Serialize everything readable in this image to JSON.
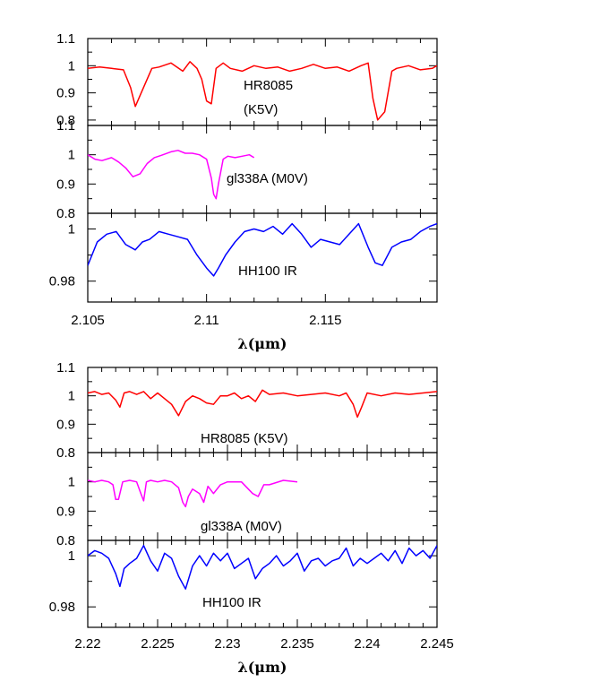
{
  "chart_data": [
    {
      "type": "line",
      "xlim": [
        2.105,
        2.1197
      ],
      "x_ticks": [
        "2.105",
        "2.11",
        "2.115"
      ],
      "x_tick_values": [
        2.105,
        2.11,
        2.115
      ],
      "xlabel": "λ(μm)",
      "panels": [
        {
          "ylim": [
            0.78,
            1.1
          ],
          "y_ticks": [
            "0.8",
            "0.9",
            "1",
            "1.1"
          ],
          "y_tick_values": [
            0.8,
            0.9,
            1.0,
            1.1
          ],
          "annotations": [
            "HR8085",
            "(K5V)"
          ],
          "series": [
            {
              "color": "#ff0000",
              "x": [
                2.105,
                2.1055,
                2.106,
                2.1065,
                2.1068,
                2.107,
                2.1073,
                2.1077,
                2.108,
                2.1085,
                2.109,
                2.1093,
                2.1096,
                2.1098,
                2.11,
                2.1102,
                2.1104,
                2.1107,
                2.111,
                2.1115,
                2.112,
                2.1125,
                2.113,
                2.1135,
                2.114,
                2.1145,
                2.115,
                2.1155,
                2.116,
                2.1165,
                2.1168,
                2.117,
                2.1172,
                2.1175,
                2.1178,
                2.118,
                2.1185,
                2.119,
                2.1195,
                2.1197
              ],
              "y": [
                0.99,
                0.995,
                0.99,
                0.985,
                0.92,
                0.85,
                0.91,
                0.99,
                0.995,
                1.01,
                0.98,
                1.015,
                0.99,
                0.95,
                0.87,
                0.86,
                0.99,
                1.01,
                0.99,
                0.98,
                1.0,
                0.99,
                0.995,
                0.98,
                0.99,
                1.005,
                0.99,
                0.995,
                0.98,
                1.0,
                1.01,
                0.88,
                0.8,
                0.83,
                0.98,
                0.99,
                1.0,
                0.985,
                0.99,
                1.0
              ]
            }
          ]
        },
        {
          "ylim": [
            0.8,
            1.1
          ],
          "y_ticks": [
            "0.8",
            "0.9",
            "1",
            "1.1"
          ],
          "y_tick_values": [
            0.8,
            0.9,
            1.0,
            1.1
          ],
          "annotations": [
            "gl338A (M0V)"
          ],
          "series": [
            {
              "color": "#ff00ff",
              "x": [
                2.105,
                2.1053,
                2.1056,
                2.106,
                2.1063,
                2.1066,
                2.1069,
                2.1072,
                2.1075,
                2.1078,
                2.1081,
                2.1085,
                2.1088,
                2.1091,
                2.1094,
                2.1097,
                2.11,
                2.1102,
                2.1103,
                2.1104,
                2.1105,
                2.1107,
                2.1109,
                2.1112,
                2.1115,
                2.1118,
                2.112
              ],
              "y": [
                1.0,
                0.985,
                0.98,
                0.99,
                0.975,
                0.955,
                0.925,
                0.935,
                0.97,
                0.99,
                0.998,
                1.01,
                1.015,
                1.005,
                1.005,
                1.0,
                0.985,
                0.92,
                0.865,
                0.85,
                0.9,
                0.985,
                0.995,
                0.99,
                0.995,
                1.0,
                0.99
              ]
            }
          ]
        },
        {
          "ylim": [
            0.972,
            1.006
          ],
          "y_ticks": [
            "0.98",
            "1"
          ],
          "y_tick_values": [
            0.98,
            1.0
          ],
          "annotations": [
            "HH100 IR"
          ],
          "series": [
            {
              "color": "#0000ff",
              "x": [
                2.105,
                2.1054,
                2.1058,
                2.1062,
                2.1066,
                2.107,
                2.1073,
                2.1076,
                2.108,
                2.1084,
                2.1088,
                2.1092,
                2.1096,
                2.11,
                2.1103,
                2.1105,
                2.1108,
                2.1112,
                2.1116,
                2.112,
                2.1124,
                2.1128,
                2.1132,
                2.1136,
                2.114,
                2.1144,
                2.1148,
                2.1152,
                2.1156,
                2.116,
                2.1164,
                2.1168,
                2.1171,
                2.1174,
                2.1178,
                2.1182,
                2.1186,
                2.119,
                2.1194,
                2.1197
              ],
              "y": [
                0.986,
                0.995,
                0.998,
                0.999,
                0.994,
                0.992,
                0.995,
                0.996,
                0.999,
                0.998,
                0.997,
                0.996,
                0.99,
                0.985,
                0.982,
                0.985,
                0.99,
                0.995,
                0.999,
                1.0,
                0.999,
                1.001,
                0.998,
                1.002,
                0.998,
                0.993,
                0.996,
                0.995,
                0.994,
                0.998,
                1.002,
                0.993,
                0.987,
                0.986,
                0.993,
                0.995,
                0.996,
                0.999,
                1.001,
                1.002
              ]
            }
          ]
        }
      ]
    },
    {
      "type": "line",
      "xlim": [
        2.22,
        2.245
      ],
      "x_ticks": [
        "2.22",
        "2.225",
        "2.23",
        "2.235",
        "2.24",
        "2.245"
      ],
      "x_tick_values": [
        2.22,
        2.225,
        2.23,
        2.235,
        2.24,
        2.245
      ],
      "xlabel": "λ(μm)",
      "panels": [
        {
          "ylim": [
            0.8,
            1.1
          ],
          "y_ticks": [
            "0.8",
            "0.9",
            "1",
            "1.1"
          ],
          "y_tick_values": [
            0.8,
            0.9,
            1.0,
            1.1
          ],
          "annotations": [
            "HR8085 (K5V)"
          ],
          "series": [
            {
              "color": "#ff0000",
              "x": [
                2.22,
                2.2205,
                2.221,
                2.2215,
                2.222,
                2.2223,
                2.2226,
                2.223,
                2.2235,
                2.224,
                2.2245,
                2.225,
                2.2255,
                2.226,
                2.2265,
                2.227,
                2.2275,
                2.228,
                2.2285,
                2.229,
                2.2295,
                2.23,
                2.2305,
                2.231,
                2.2315,
                2.232,
                2.2325,
                2.233,
                2.234,
                2.235,
                2.236,
                2.237,
                2.238,
                2.2385,
                2.239,
                2.2393,
                2.2396,
                2.24,
                2.241,
                2.242,
                2.243,
                2.244,
                2.245
              ],
              "y": [
                1.01,
                1.015,
                1.005,
                1.01,
                0.985,
                0.96,
                1.01,
                1.015,
                1.005,
                1.015,
                0.99,
                1.01,
                0.99,
                0.97,
                0.93,
                0.98,
                1.0,
                0.99,
                0.975,
                0.97,
                1.0,
                1.0,
                1.01,
                0.99,
                1.0,
                0.98,
                1.02,
                1.005,
                1.01,
                1.0,
                1.005,
                1.01,
                1.0,
                1.01,
                0.97,
                0.925,
                0.96,
                1.01,
                1.0,
                1.01,
                1.005,
                1.01,
                1.015
              ]
            }
          ]
        },
        {
          "ylim": [
            0.8,
            1.1
          ],
          "y_ticks": [
            "0.8",
            "0.9",
            "1"
          ],
          "y_tick_values": [
            0.8,
            0.9,
            1.0
          ],
          "annotations": [
            "gl338A (M0V)"
          ],
          "series": [
            {
              "color": "#ff00ff",
              "x": [
                2.22,
                2.2205,
                2.221,
                2.2215,
                2.2218,
                2.222,
                2.2222,
                2.2225,
                2.223,
                2.2235,
                2.2238,
                2.224,
                2.2242,
                2.2245,
                2.225,
                2.2255,
                2.226,
                2.2265,
                2.2268,
                2.227,
                2.2272,
                2.2275,
                2.228,
                2.2283,
                2.2286,
                2.229,
                2.2295,
                2.23,
                2.231,
                2.2318,
                2.2322,
                2.2326,
                2.233,
                2.234,
                2.235
              ],
              "y": [
                1.005,
                1.0,
                1.005,
                1.0,
                0.99,
                0.94,
                0.94,
                1.0,
                1.005,
                1.0,
                0.96,
                0.935,
                1.0,
                1.005,
                1.0,
                1.005,
                1.0,
                0.98,
                0.93,
                0.915,
                0.95,
                0.975,
                0.96,
                0.93,
                0.985,
                0.96,
                0.99,
                1.0,
                1.0,
                0.96,
                0.95,
                0.99,
                0.99,
                1.005,
                1.0
              ]
            }
          ]
        },
        {
          "ylim": [
            0.972,
            1.006
          ],
          "y_ticks": [
            "0.98",
            "1"
          ],
          "y_tick_values": [
            0.98,
            1.0
          ],
          "annotations": [
            "HH100 IR"
          ],
          "series": [
            {
              "color": "#0000ff",
              "x": [
                2.22,
                2.2205,
                2.221,
                2.2215,
                2.222,
                2.2223,
                2.2226,
                2.223,
                2.2235,
                2.224,
                2.2245,
                2.225,
                2.2255,
                2.226,
                2.2265,
                2.227,
                2.2275,
                2.228,
                2.2285,
                2.229,
                2.2295,
                2.23,
                2.2305,
                2.231,
                2.2315,
                2.232,
                2.2325,
                2.233,
                2.2335,
                2.234,
                2.2345,
                2.235,
                2.2355,
                2.236,
                2.2365,
                2.237,
                2.2375,
                2.238,
                2.2385,
                2.239,
                2.2395,
                2.24,
                2.2405,
                2.241,
                2.2415,
                2.242,
                2.2425,
                2.243,
                2.2435,
                2.244,
                2.2445,
                2.245
              ],
              "y": [
                1.0,
                1.002,
                1.001,
                0.999,
                0.993,
                0.988,
                0.995,
                0.997,
                0.999,
                1.004,
                0.998,
                0.994,
                1.001,
                0.999,
                0.992,
                0.987,
                0.996,
                1.0,
                0.996,
                1.001,
                0.998,
                1.001,
                0.995,
                0.997,
                0.999,
                0.991,
                0.995,
                0.997,
                1.0,
                0.996,
                0.998,
                1.001,
                0.994,
                0.998,
                0.999,
                0.996,
                0.998,
                0.999,
                1.003,
                0.996,
                0.999,
                0.997,
                0.999,
                1.001,
                0.998,
                1.002,
                0.997,
                1.003,
                1.0,
                1.002,
                0.999,
                1.004
              ]
            }
          ]
        }
      ]
    }
  ]
}
